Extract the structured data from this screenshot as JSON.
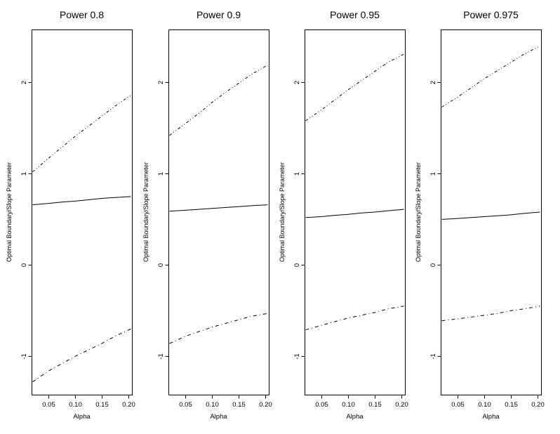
{
  "figure": {
    "background": "#ffffff",
    "line_color": "#000000"
  },
  "chart_data": [
    {
      "type": "line",
      "title": "Power 0.8",
      "xlabel": "Alpha",
      "ylabel": "Optimal Boundary/Slope Parameter",
      "xlim": [
        0.018,
        0.207
      ],
      "ylim": [
        -1.42,
        2.58
      ],
      "x_ticks": [
        0.05,
        0.1,
        0.15,
        0.2
      ],
      "x_tick_labels": [
        "0.05",
        "0.10",
        "0.15",
        "0.20"
      ],
      "y_ticks": [
        -1,
        0,
        1,
        2
      ],
      "y_tick_labels": [
        "-1",
        "0",
        "1",
        "2"
      ],
      "grid": "off",
      "legend": "none",
      "x": [
        0.02,
        0.05,
        0.075,
        0.1,
        0.125,
        0.15,
        0.175,
        0.205
      ],
      "series": [
        {
          "name": "upper-boundary",
          "style": "dotdash_fine",
          "values": [
            1.02,
            1.17,
            1.29,
            1.41,
            1.52,
            1.63,
            1.74,
            1.86
          ]
        },
        {
          "name": "middle-slope",
          "style": "solid",
          "values": [
            0.66,
            0.675,
            0.69,
            0.7,
            0.715,
            0.73,
            0.74,
            0.75
          ]
        },
        {
          "name": "lower-boundary",
          "style": "dashdot",
          "values": [
            -1.28,
            -1.16,
            -1.08,
            -1.0,
            -0.93,
            -0.86,
            -0.78,
            -0.7
          ]
        }
      ]
    },
    {
      "type": "line",
      "title": "Power 0.9",
      "xlabel": "Alpha",
      "ylabel": "Optimal Boundary/Slope Parameter",
      "xlim": [
        0.018,
        0.207
      ],
      "ylim": [
        -1.42,
        2.58
      ],
      "x_ticks": [
        0.05,
        0.1,
        0.15,
        0.2
      ],
      "x_tick_labels": [
        "0.05",
        "0.10",
        "0.15",
        "0.20"
      ],
      "y_ticks": [
        -1,
        0,
        1,
        2
      ],
      "y_tick_labels": [
        "-1",
        "0",
        "1",
        "2"
      ],
      "grid": "off",
      "legend": "none",
      "x": [
        0.02,
        0.05,
        0.075,
        0.1,
        0.125,
        0.15,
        0.175,
        0.205
      ],
      "series": [
        {
          "name": "upper-boundary",
          "style": "dotdash_fine",
          "values": [
            1.42,
            1.55,
            1.66,
            1.78,
            1.89,
            1.99,
            2.09,
            2.19
          ]
        },
        {
          "name": "middle-slope",
          "style": "solid",
          "values": [
            0.59,
            0.6,
            0.61,
            0.62,
            0.63,
            0.64,
            0.65,
            0.66
          ]
        },
        {
          "name": "lower-boundary",
          "style": "dashdot",
          "values": [
            -0.86,
            -0.78,
            -0.73,
            -0.68,
            -0.64,
            -0.6,
            -0.56,
            -0.53
          ]
        }
      ]
    },
    {
      "type": "line",
      "title": "Power 0.95",
      "xlabel": "Alpha",
      "ylabel": "Optimal Boundary/Slope Parameter",
      "xlim": [
        0.018,
        0.207
      ],
      "ylim": [
        -1.42,
        2.58
      ],
      "x_ticks": [
        0.05,
        0.1,
        0.15,
        0.2
      ],
      "x_tick_labels": [
        "0.05",
        "0.10",
        "0.15",
        "0.20"
      ],
      "y_ticks": [
        -1,
        0,
        1,
        2
      ],
      "y_tick_labels": [
        "-1",
        "0",
        "1",
        "2"
      ],
      "grid": "off",
      "legend": "none",
      "x": [
        0.02,
        0.05,
        0.075,
        0.1,
        0.125,
        0.15,
        0.175,
        0.205
      ],
      "series": [
        {
          "name": "upper-boundary",
          "style": "dotdash_fine",
          "values": [
            1.58,
            1.7,
            1.81,
            1.92,
            2.02,
            2.12,
            2.22,
            2.31
          ]
        },
        {
          "name": "middle-slope",
          "style": "solid",
          "values": [
            0.52,
            0.53,
            0.545,
            0.555,
            0.57,
            0.58,
            0.595,
            0.61
          ]
        },
        {
          "name": "lower-boundary",
          "style": "dashdot",
          "values": [
            -0.71,
            -0.66,
            -0.62,
            -0.58,
            -0.55,
            -0.52,
            -0.48,
            -0.45
          ]
        }
      ]
    },
    {
      "type": "line",
      "title": "Power 0.975",
      "xlabel": "Alpha",
      "ylabel": "Optimal Boundary/Slope Parameter",
      "xlim": [
        0.018,
        0.207
      ],
      "ylim": [
        -1.42,
        2.58
      ],
      "x_ticks": [
        0.05,
        0.1,
        0.15,
        0.2
      ],
      "x_tick_labels": [
        "0.05",
        "0.10",
        "0.15",
        "0.20"
      ],
      "y_ticks": [
        -1,
        0,
        1,
        2
      ],
      "y_tick_labels": [
        "-1",
        "0",
        "1",
        "2"
      ],
      "grid": "off",
      "legend": "none",
      "x": [
        0.02,
        0.05,
        0.075,
        0.1,
        0.125,
        0.15,
        0.175,
        0.205
      ],
      "series": [
        {
          "name": "upper-boundary",
          "style": "dotdash_fine",
          "values": [
            1.73,
            1.84,
            1.94,
            2.04,
            2.13,
            2.22,
            2.31,
            2.4
          ]
        },
        {
          "name": "middle-slope",
          "style": "solid",
          "values": [
            0.5,
            0.51,
            0.52,
            0.53,
            0.54,
            0.55,
            0.565,
            0.58
          ]
        },
        {
          "name": "lower-boundary",
          "style": "dashdot",
          "values": [
            -0.61,
            -0.59,
            -0.57,
            -0.55,
            -0.53,
            -0.5,
            -0.48,
            -0.45
          ]
        }
      ]
    }
  ]
}
